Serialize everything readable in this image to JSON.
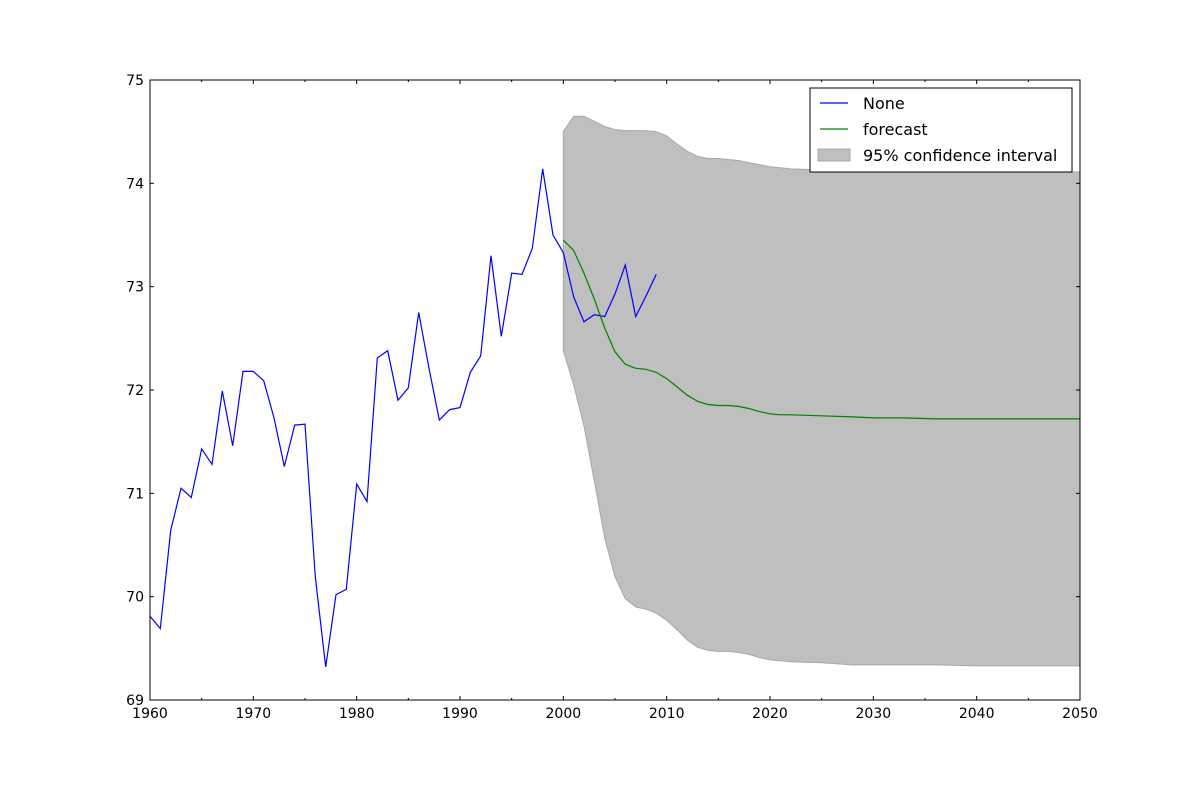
{
  "chart_data": {
    "type": "line",
    "xlim": [
      1960,
      2050
    ],
    "ylim": [
      69,
      75
    ],
    "x_ticks": [
      1960,
      1970,
      1980,
      1990,
      2000,
      2010,
      2020,
      2030,
      2040,
      2050
    ],
    "y_ticks": [
      69,
      70,
      71,
      72,
      73,
      74,
      75
    ],
    "legend": {
      "placement": "upper-right",
      "entries": [
        "None",
        "forecast",
        "95% confidence interval"
      ]
    },
    "grid": false,
    "series": [
      {
        "name": "None",
        "kind": "line",
        "color": "#0000ff",
        "x": [
          1960,
          1961,
          1962,
          1963,
          1964,
          1965,
          1966,
          1967,
          1968,
          1969,
          1970,
          1971,
          1972,
          1973,
          1974,
          1975,
          1976,
          1977,
          1978,
          1979,
          1980,
          1981,
          1982,
          1983,
          1984,
          1985,
          1986,
          1987,
          1988,
          1989,
          1990,
          1991,
          1992,
          1993,
          1994,
          1995,
          1996,
          1997,
          1998,
          1999,
          2000,
          2001,
          2002,
          2003,
          2004,
          2005,
          2006,
          2007,
          2008,
          2009
        ],
        "y": [
          69.81,
          69.69,
          70.64,
          71.05,
          70.96,
          71.43,
          71.28,
          71.99,
          71.46,
          72.18,
          72.18,
          72.09,
          71.73,
          71.26,
          71.66,
          71.67,
          70.19,
          69.32,
          70.02,
          70.07,
          71.09,
          70.92,
          72.31,
          72.38,
          71.9,
          72.02,
          72.75,
          72.21,
          71.71,
          71.81,
          71.83,
          72.17,
          72.33,
          73.3,
          72.52,
          73.13,
          73.12,
          73.37,
          74.14,
          73.5,
          73.33,
          72.9,
          72.66,
          72.73,
          72.71,
          72.93,
          73.21,
          72.71,
          72.91,
          73.12
        ]
      },
      {
        "name": "forecast",
        "kind": "line",
        "color": "#008000",
        "x": [
          2000,
          2001,
          2002,
          2003,
          2004,
          2005,
          2006,
          2007,
          2008,
          2009,
          2010,
          2011,
          2012,
          2013,
          2014,
          2015,
          2016,
          2017,
          2018,
          2019,
          2020,
          2021,
          2022,
          2025,
          2028,
          2030,
          2033,
          2036,
          2040,
          2045,
          2050
        ],
        "y": [
          73.45,
          73.35,
          73.13,
          72.88,
          72.6,
          72.37,
          72.25,
          72.21,
          72.2,
          72.17,
          72.11,
          72.03,
          71.95,
          71.89,
          71.86,
          71.85,
          71.85,
          71.84,
          71.82,
          71.79,
          71.77,
          71.76,
          71.76,
          71.75,
          71.74,
          71.73,
          71.73,
          71.72,
          71.72,
          71.72,
          71.72
        ]
      },
      {
        "name": "95% confidence interval",
        "kind": "band",
        "color": "#bfbfbf",
        "x": [
          2000,
          2001,
          2002,
          2003,
          2004,
          2005,
          2006,
          2007,
          2008,
          2009,
          2010,
          2011,
          2012,
          2013,
          2014,
          2015,
          2016,
          2017,
          2018,
          2019,
          2020,
          2021,
          2022,
          2025,
          2028,
          2030,
          2033,
          2036,
          2040,
          2045,
          2050
        ],
        "upper": [
          74.5,
          74.65,
          74.65,
          74.6,
          74.55,
          74.52,
          74.51,
          74.51,
          74.51,
          74.5,
          74.46,
          74.38,
          74.31,
          74.26,
          74.24,
          74.24,
          74.23,
          74.22,
          74.2,
          74.18,
          74.16,
          74.15,
          74.14,
          74.13,
          74.12,
          74.12,
          74.12,
          74.12,
          74.12,
          74.11,
          74.11
        ],
        "lower": [
          72.38,
          72.05,
          71.65,
          71.12,
          70.57,
          70.19,
          69.98,
          69.9,
          69.88,
          69.84,
          69.77,
          69.68,
          69.58,
          69.51,
          69.48,
          69.47,
          69.47,
          69.46,
          69.44,
          69.41,
          69.39,
          69.38,
          69.37,
          69.36,
          69.34,
          69.34,
          69.34,
          69.34,
          69.33,
          69.33,
          69.33
        ]
      }
    ]
  }
}
